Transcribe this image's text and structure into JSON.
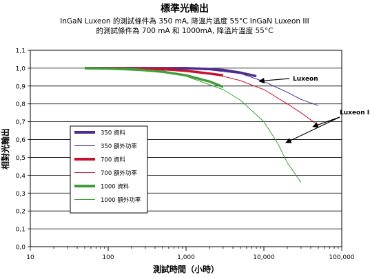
{
  "chart_data": {
    "type": "line",
    "title": "標準光輸出",
    "subtitle_lines": [
      "InGaN Luxeon 的測試條件為 350 mA,  降溫片溫度  55°C InGaN Luxeon III",
      "的測試條件為 700 mA  和  1000mA, 降溫片溫度  55°C"
    ],
    "xlabel": "測試時間（小時）",
    "ylabel": "相對光輸出",
    "x_scale": "log",
    "xlim": [
      10,
      100000
    ],
    "ylim": [
      0.0,
      1.1
    ],
    "x_ticks": [
      {
        "value": 10,
        "label": "10"
      },
      {
        "value": 100,
        "label": "100"
      },
      {
        "value": 1000,
        "label": "1,000"
      },
      {
        "value": 10000,
        "label": "10,000"
      },
      {
        "value": 100000,
        "label": "100,000"
      }
    ],
    "y_ticks": [
      {
        "value": 0.0,
        "label": "0,0"
      },
      {
        "value": 0.1,
        "label": "0,1"
      },
      {
        "value": 0.2,
        "label": "0,2"
      },
      {
        "value": 0.3,
        "label": "0,3"
      },
      {
        "value": 0.4,
        "label": "0,4"
      },
      {
        "value": 0.5,
        "label": "0,5"
      },
      {
        "value": 0.6,
        "label": "0,6"
      },
      {
        "value": 0.7,
        "label": "0,7"
      },
      {
        "value": 0.8,
        "label": "0,8"
      },
      {
        "value": 0.9,
        "label": "0,9"
      },
      {
        "value": 1.0,
        "label": "1,0"
      },
      {
        "value": 1.1,
        "label": "1,1"
      }
    ],
    "grid": "horizontal",
    "legend_position": "left-middle",
    "series": [
      {
        "name": "350 資料",
        "color": "#4b2d8f",
        "style": "thick",
        "points": [
          [
            50,
            1.0
          ],
          [
            200,
            1.0
          ],
          [
            1000,
            1.0
          ],
          [
            2000,
            0.995
          ],
          [
            3000,
            0.99
          ],
          [
            5000,
            0.975
          ],
          [
            8000,
            0.955
          ]
        ]
      },
      {
        "name": "350 額外功率",
        "color": "#4b2d8f",
        "style": "thin",
        "points": [
          [
            50,
            1.0
          ],
          [
            1000,
            0.995
          ],
          [
            2000,
            0.99
          ],
          [
            5000,
            0.97
          ],
          [
            10000,
            0.925
          ],
          [
            20000,
            0.865
          ],
          [
            30000,
            0.825
          ],
          [
            50000,
            0.79
          ]
        ]
      },
      {
        "name": "700 資料",
        "color": "#c8102e",
        "style": "thick",
        "points": [
          [
            50,
            1.0
          ],
          [
            200,
            1.0
          ],
          [
            500,
            0.995
          ],
          [
            1000,
            0.985
          ],
          [
            2000,
            0.97
          ],
          [
            3000,
            0.96
          ]
        ]
      },
      {
        "name": "700 額外功率",
        "color": "#c8102e",
        "style": "thin",
        "points": [
          [
            50,
            1.0
          ],
          [
            1000,
            0.985
          ],
          [
            3000,
            0.955
          ],
          [
            5000,
            0.93
          ],
          [
            10000,
            0.88
          ],
          [
            20000,
            0.8
          ],
          [
            30000,
            0.75
          ],
          [
            50000,
            0.68
          ]
        ]
      },
      {
        "name": "1000 資料",
        "color": "#3f9e3a",
        "style": "thick",
        "points": [
          [
            50,
            1.0
          ],
          [
            200,
            0.995
          ],
          [
            500,
            0.98
          ],
          [
            1000,
            0.96
          ],
          [
            2000,
            0.925
          ],
          [
            3000,
            0.895
          ]
        ]
      },
      {
        "name": "1000 額外功率",
        "color": "#3f9e3a",
        "style": "thin",
        "points": [
          [
            50,
            1.0
          ],
          [
            500,
            0.98
          ],
          [
            1000,
            0.955
          ],
          [
            3000,
            0.88
          ],
          [
            5000,
            0.82
          ],
          [
            10000,
            0.7
          ],
          [
            15000,
            0.58
          ],
          [
            20000,
            0.47
          ],
          [
            30000,
            0.36
          ]
        ]
      }
    ],
    "annotations": [
      {
        "text": "Luxeon",
        "arrow_to": [
          8000,
          0.935
        ]
      },
      {
        "text": "Luxeon III",
        "arrow_to_list": [
          [
            40000,
            0.68
          ],
          [
            18000,
            0.59
          ]
        ]
      }
    ]
  }
}
